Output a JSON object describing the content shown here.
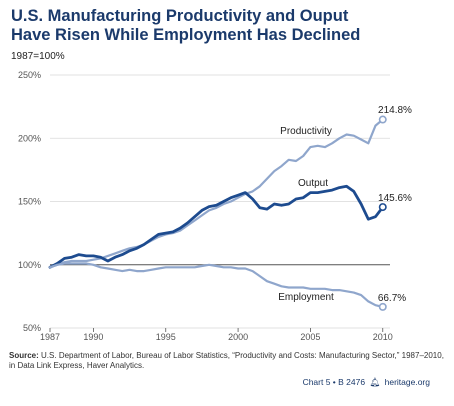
{
  "title_line1": "U.S. Manufacturing Productivity and Ouput",
  "title_line2": "Have Risen While Employment Has Declined",
  "subtitle": "1987=100%",
  "source_label": "Source:",
  "source_text": "U.S. Department of Labor, Bureau of Labor Statistics, “Productivity and Costs: Manufacturing Sector,” 1987–2010, in Data Link Express, Haver Analytics.",
  "footer_chart": "Chart 5 • B 2476",
  "footer_site": "heritage.org",
  "colors": {
    "productivity": "#8fa6cc",
    "output": "#1d4b8f",
    "employment": "#8fa6cc",
    "axis_text": "#555555",
    "grid": "#d9d9d9",
    "baseline": "#555555",
    "title": "#1b3a6b"
  },
  "chart_data": {
    "type": "line",
    "x_range": [
      1987,
      2010.5
    ],
    "ylim": [
      50,
      250
    ],
    "y_ticks": [
      50,
      100,
      150,
      200,
      250
    ],
    "y_tick_labels": [
      "50%",
      "100%",
      "150%",
      "200%",
      "250%"
    ],
    "x_ticks": [
      1987,
      1990,
      1995,
      2000,
      2005,
      2010
    ],
    "x_tick_labels": [
      "1987",
      "1990",
      "1995",
      "2000",
      "2005",
      "2010"
    ],
    "grid": true,
    "reference_line": 100,
    "series": [
      {
        "name": "Productivity",
        "end_label": "214.8%",
        "points": [
          [
            1987,
            98
          ],
          [
            1987.5,
            100
          ],
          [
            1988,
            102
          ],
          [
            1988.5,
            103
          ],
          [
            1989,
            103
          ],
          [
            1989.5,
            103
          ],
          [
            1990,
            104
          ],
          [
            1990.5,
            105
          ],
          [
            1991,
            107
          ],
          [
            1991.5,
            109
          ],
          [
            1992,
            111
          ],
          [
            1992.5,
            113
          ],
          [
            1993,
            114
          ],
          [
            1993.5,
            116
          ],
          [
            1994,
            119
          ],
          [
            1994.5,
            122
          ],
          [
            1995,
            124
          ],
          [
            1995.5,
            125
          ],
          [
            1996,
            127
          ],
          [
            1996.5,
            131
          ],
          [
            1997,
            135
          ],
          [
            1997.5,
            139
          ],
          [
            1998,
            143
          ],
          [
            1998.5,
            145
          ],
          [
            1999,
            148
          ],
          [
            1999.5,
            150
          ],
          [
            2000,
            153
          ],
          [
            2000.5,
            156
          ],
          [
            2001,
            158
          ],
          [
            2001.5,
            162
          ],
          [
            2002,
            168
          ],
          [
            2002.5,
            174
          ],
          [
            2003,
            178
          ],
          [
            2003.5,
            183
          ],
          [
            2004,
            182
          ],
          [
            2004.5,
            186
          ],
          [
            2005,
            193
          ],
          [
            2005.5,
            194
          ],
          [
            2006,
            193
          ],
          [
            2006.5,
            196
          ],
          [
            2007,
            200
          ],
          [
            2007.5,
            203
          ],
          [
            2008,
            202
          ],
          [
            2008.5,
            199
          ],
          [
            2009,
            196
          ],
          [
            2009.5,
            210
          ],
          [
            2010,
            214.8
          ]
        ]
      },
      {
        "name": "Output",
        "end_label": "145.6%",
        "points": [
          [
            1987,
            98
          ],
          [
            1987.5,
            101
          ],
          [
            1988,
            105
          ],
          [
            1988.5,
            106
          ],
          [
            1989,
            108
          ],
          [
            1989.5,
            107
          ],
          [
            1990,
            107
          ],
          [
            1990.5,
            106
          ],
          [
            1991,
            103
          ],
          [
            1991.5,
            106
          ],
          [
            1992,
            108
          ],
          [
            1992.5,
            111
          ],
          [
            1993,
            113
          ],
          [
            1993.5,
            116
          ],
          [
            1994,
            120
          ],
          [
            1994.5,
            124
          ],
          [
            1995,
            125
          ],
          [
            1995.5,
            126
          ],
          [
            1996,
            129
          ],
          [
            1996.5,
            133
          ],
          [
            1997,
            138
          ],
          [
            1997.5,
            143
          ],
          [
            1998,
            146
          ],
          [
            1998.5,
            147
          ],
          [
            1999,
            150
          ],
          [
            1999.5,
            153
          ],
          [
            2000,
            155
          ],
          [
            2000.5,
            157
          ],
          [
            2001,
            152
          ],
          [
            2001.5,
            145
          ],
          [
            2002,
            144
          ],
          [
            2002.5,
            148
          ],
          [
            2003,
            147
          ],
          [
            2003.5,
            148
          ],
          [
            2004,
            152
          ],
          [
            2004.5,
            153
          ],
          [
            2005,
            157
          ],
          [
            2005.5,
            157
          ],
          [
            2006,
            158
          ],
          [
            2006.5,
            159
          ],
          [
            2007,
            161
          ],
          [
            2007.5,
            162
          ],
          [
            2008,
            158
          ],
          [
            2008.5,
            148
          ],
          [
            2009,
            136
          ],
          [
            2009.5,
            138
          ],
          [
            2010,
            145.6
          ]
        ]
      },
      {
        "name": "Employment",
        "end_label": "66.7%",
        "points": [
          [
            1987,
            98
          ],
          [
            1987.5,
            100
          ],
          [
            1988,
            101
          ],
          [
            1988.5,
            101
          ],
          [
            1989,
            101
          ],
          [
            1989.5,
            101
          ],
          [
            1990,
            100
          ],
          [
            1990.5,
            98
          ],
          [
            1991,
            97
          ],
          [
            1991.5,
            96
          ],
          [
            1992,
            95
          ],
          [
            1992.5,
            96
          ],
          [
            1993,
            95
          ],
          [
            1993.5,
            95
          ],
          [
            1994,
            96
          ],
          [
            1994.5,
            97
          ],
          [
            1995,
            98
          ],
          [
            1995.5,
            98
          ],
          [
            1996,
            98
          ],
          [
            1996.5,
            98
          ],
          [
            1997,
            98
          ],
          [
            1997.5,
            99
          ],
          [
            1998,
            100
          ],
          [
            1998.5,
            99
          ],
          [
            1999,
            98
          ],
          [
            1999.5,
            98
          ],
          [
            2000,
            97
          ],
          [
            2000.5,
            97
          ],
          [
            2001,
            95
          ],
          [
            2001.5,
            91
          ],
          [
            2002,
            87
          ],
          [
            2002.5,
            85
          ],
          [
            2003,
            83
          ],
          [
            2003.5,
            82
          ],
          [
            2004,
            82
          ],
          [
            2004.5,
            82
          ],
          [
            2005,
            81
          ],
          [
            2005.5,
            81
          ],
          [
            2006,
            81
          ],
          [
            2006.5,
            80
          ],
          [
            2007,
            80
          ],
          [
            2007.5,
            79
          ],
          [
            2008,
            78
          ],
          [
            2008.5,
            76
          ],
          [
            2009,
            71
          ],
          [
            2009.5,
            68
          ],
          [
            2010,
            66.7
          ]
        ]
      }
    ]
  }
}
